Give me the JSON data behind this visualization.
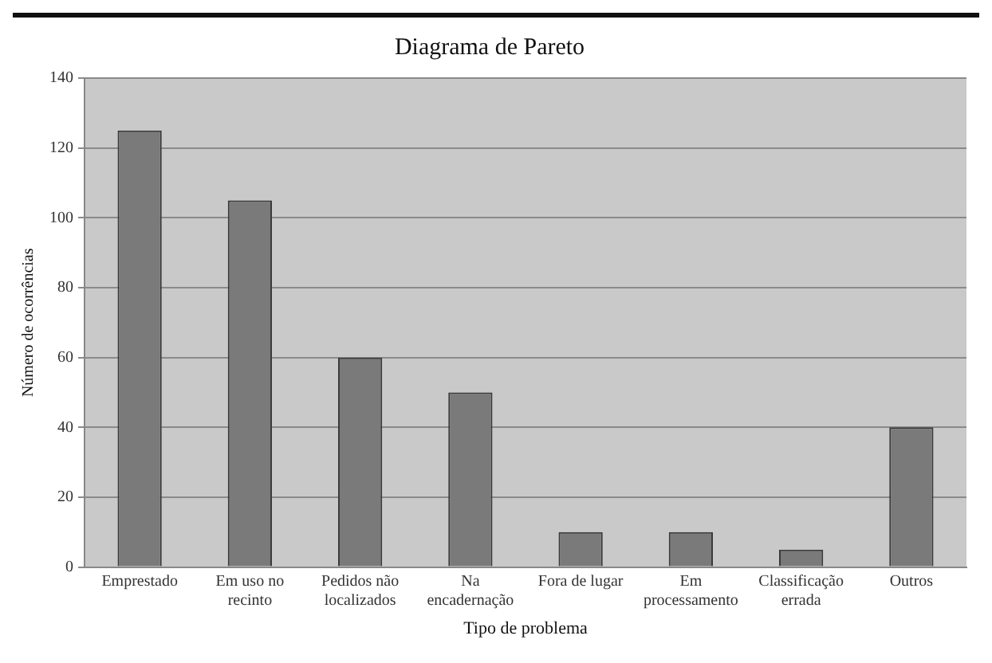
{
  "chart_data": {
    "type": "bar",
    "title": "Diagrama de Pareto",
    "xlabel": "Tipo de problema",
    "ylabel": "Número de ocorrências",
    "categories": [
      "Emprestado",
      "Em uso no recinto",
      "Pedidos não localizados",
      "Na encadernação",
      "Fora de lugar",
      "Em processamento",
      "Classificação errada",
      "Outros"
    ],
    "values": [
      125,
      105,
      60,
      50,
      10,
      10,
      5,
      40
    ],
    "color": "#7a7a7a",
    "ylim": [
      0,
      140
    ],
    "yticks": [
      0,
      20,
      40,
      60,
      80,
      100,
      120,
      140
    ],
    "grid": "y"
  }
}
